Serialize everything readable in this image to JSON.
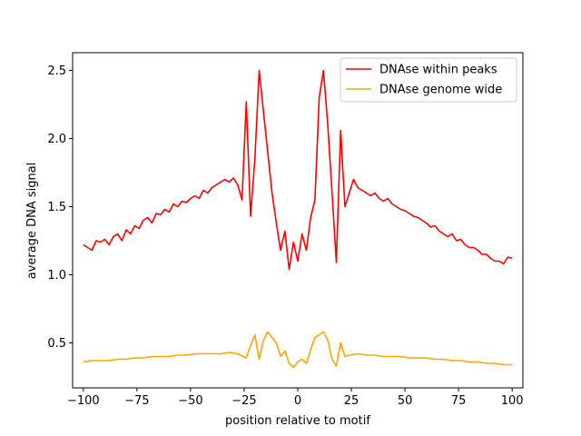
{
  "chart_data": {
    "type": "line",
    "title": "",
    "xlabel": "position relative to motif",
    "ylabel": "average DNA signal",
    "xlim": [
      -105,
      105
    ],
    "ylim": [
      0.17,
      2.63
    ],
    "xticks": [
      -100,
      -75,
      -50,
      -25,
      0,
      25,
      50,
      75,
      100
    ],
    "yticks": [
      0.5,
      1.0,
      1.5,
      2.0,
      2.5
    ],
    "xtick_labels": [
      "−100",
      "−75",
      "−50",
      "−25",
      "0",
      "25",
      "50",
      "75",
      "100"
    ],
    "ytick_labels": [
      "0.5",
      "1.0",
      "1.5",
      "2.0",
      "2.5"
    ],
    "legend_position": "top-right",
    "series": [
      {
        "name": "DNAse within peaks",
        "color": "#ff0000",
        "x": [
          -100,
          -98,
          -96,
          -94,
          -92,
          -90,
          -88,
          -86,
          -84,
          -82,
          -80,
          -78,
          -76,
          -74,
          -72,
          -70,
          -68,
          -66,
          -64,
          -62,
          -60,
          -58,
          -56,
          -54,
          -52,
          -50,
          -48,
          -46,
          -44,
          -42,
          -40,
          -38,
          -36,
          -34,
          -32,
          -30,
          -28,
          -26,
          -24,
          -22,
          -20,
          -18,
          -16,
          -14,
          -12,
          -10,
          -8,
          -6,
          -4,
          -2,
          0,
          2,
          4,
          6,
          8,
          10,
          12,
          14,
          16,
          18,
          20,
          22,
          24,
          26,
          28,
          30,
          32,
          34,
          36,
          38,
          40,
          42,
          44,
          46,
          48,
          50,
          52,
          54,
          56,
          58,
          60,
          62,
          64,
          66,
          68,
          70,
          72,
          74,
          76,
          78,
          80,
          82,
          84,
          86,
          88,
          90,
          92,
          94,
          96,
          98,
          100
        ],
        "values": [
          1.22,
          1.2,
          1.18,
          1.25,
          1.24,
          1.26,
          1.22,
          1.28,
          1.3,
          1.25,
          1.33,
          1.3,
          1.36,
          1.34,
          1.4,
          1.42,
          1.38,
          1.45,
          1.44,
          1.48,
          1.46,
          1.52,
          1.5,
          1.54,
          1.53,
          1.56,
          1.58,
          1.56,
          1.62,
          1.6,
          1.64,
          1.66,
          1.68,
          1.7,
          1.68,
          1.71,
          1.66,
          1.55,
          2.27,
          1.43,
          1.85,
          2.5,
          2.2,
          1.9,
          1.6,
          1.38,
          1.18,
          1.32,
          1.04,
          1.24,
          1.1,
          1.3,
          1.18,
          1.42,
          1.55,
          2.3,
          2.5,
          2.1,
          1.6,
          1.09,
          2.06,
          1.5,
          1.6,
          1.7,
          1.64,
          1.62,
          1.6,
          1.58,
          1.6,
          1.56,
          1.54,
          1.56,
          1.52,
          1.5,
          1.48,
          1.47,
          1.45,
          1.43,
          1.42,
          1.4,
          1.38,
          1.35,
          1.36,
          1.32,
          1.3,
          1.28,
          1.3,
          1.25,
          1.26,
          1.22,
          1.2,
          1.2,
          1.18,
          1.15,
          1.15,
          1.12,
          1.1,
          1.1,
          1.08,
          1.13,
          1.12
        ]
      },
      {
        "name": "DNAse genome wide",
        "color": "#ffa500",
        "x": [
          -100,
          -96,
          -92,
          -88,
          -84,
          -80,
          -76,
          -72,
          -68,
          -64,
          -60,
          -56,
          -52,
          -48,
          -44,
          -40,
          -36,
          -32,
          -28,
          -24,
          -22,
          -20,
          -18,
          -16,
          -14,
          -12,
          -10,
          -8,
          -6,
          -4,
          -2,
          0,
          2,
          4,
          6,
          8,
          10,
          12,
          14,
          16,
          18,
          20,
          22,
          24,
          28,
          32,
          36,
          40,
          44,
          48,
          52,
          56,
          60,
          64,
          68,
          72,
          76,
          80,
          84,
          88,
          92,
          96,
          100
        ],
        "values": [
          0.36,
          0.37,
          0.37,
          0.37,
          0.38,
          0.38,
          0.39,
          0.39,
          0.4,
          0.4,
          0.4,
          0.41,
          0.41,
          0.42,
          0.42,
          0.42,
          0.42,
          0.43,
          0.42,
          0.39,
          0.48,
          0.56,
          0.38,
          0.52,
          0.58,
          0.54,
          0.5,
          0.4,
          0.44,
          0.35,
          0.32,
          0.36,
          0.38,
          0.35,
          0.45,
          0.54,
          0.56,
          0.58,
          0.52,
          0.38,
          0.33,
          0.5,
          0.4,
          0.41,
          0.42,
          0.41,
          0.41,
          0.4,
          0.4,
          0.4,
          0.39,
          0.39,
          0.39,
          0.38,
          0.38,
          0.37,
          0.37,
          0.36,
          0.36,
          0.35,
          0.35,
          0.34,
          0.34
        ]
      }
    ]
  }
}
